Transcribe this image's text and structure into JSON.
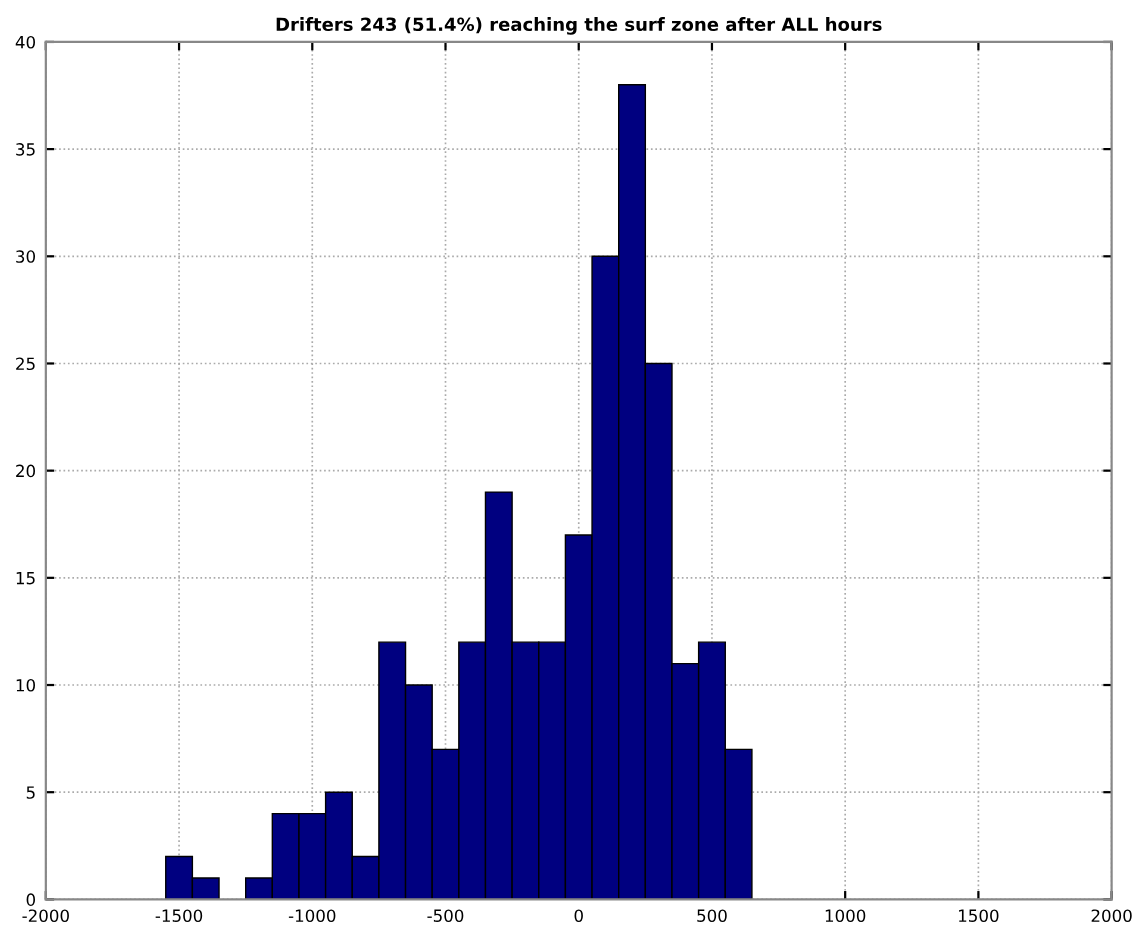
{
  "chart_data": {
    "type": "histogram",
    "title": "Drifters 243 (51.4%) reaching the surf zone after ALL hours",
    "bins": [
      -1550,
      -1450,
      -1350,
      -1250,
      -1150,
      -1050,
      -950,
      -850,
      -750,
      -650,
      -550,
      -450,
      -350,
      -250,
      -150,
      -50,
      50,
      150,
      250,
      350,
      450,
      550,
      650
    ],
    "values": [
      2,
      1,
      0,
      1,
      4,
      4,
      5,
      2,
      12,
      10,
      7,
      12,
      19,
      12,
      12,
      17,
      30,
      38,
      25,
      11,
      12,
      7
    ],
    "color": "#000080",
    "xlim": [
      -2000,
      2000
    ],
    "xticks": [
      -2000,
      -1500,
      -1000,
      -500,
      0,
      500,
      1000,
      1500,
      2000
    ],
    "ylim": [
      0,
      40
    ],
    "yticks": [
      0,
      5,
      10,
      15,
      20,
      25,
      30,
      35,
      40
    ],
    "grid": true
  }
}
